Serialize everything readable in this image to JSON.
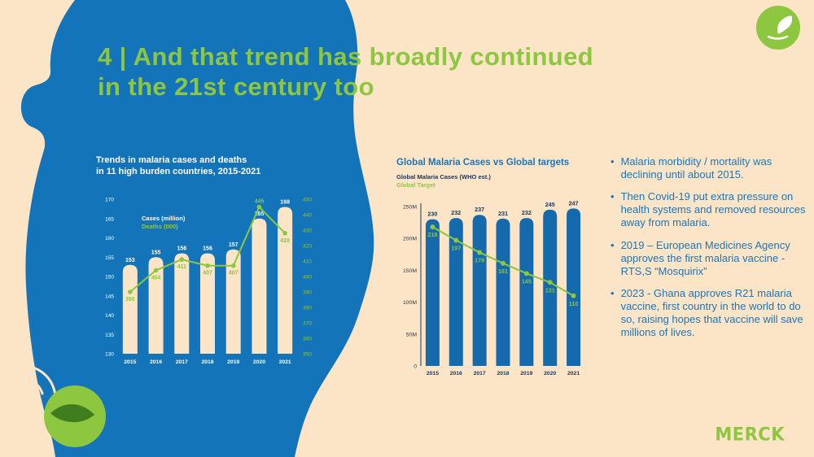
{
  "slide_title": {
    "line1": "4 | And that trend has broadly continued",
    "line2": "in the 21st century too"
  },
  "colors": {
    "background": "#fce4c6",
    "blob_blue": "#1474b9",
    "accent_green": "#8dc63f",
    "bar_cream": "#fce4c6",
    "bar_blue": "#1569ad",
    "navy_text": "#17365d",
    "bullet_blue": "#1b75bb",
    "white": "#ffffff"
  },
  "chart_data": [
    {
      "type": "bar+line",
      "title_line1": "Trends in malaria cases and deaths",
      "title_line2": "in 11 high burden countries, 2015-2021",
      "categories": [
        "2015",
        "2016",
        "2017",
        "2018",
        "2019",
        "2020",
        "2021"
      ],
      "series": [
        {
          "name": "Cases (million)",
          "type": "bar",
          "axis": "left",
          "values": [
            153,
            155,
            156,
            156,
            157,
            165,
            168
          ]
        },
        {
          "name": "Deaths (000)",
          "type": "line",
          "axis": "right",
          "values": [
            390,
            404,
            411,
            407,
            407,
            445,
            428
          ]
        }
      ],
      "left_axis": {
        "min": 130,
        "max": 170,
        "ticks": [
          "170",
          "165",
          "160",
          "155",
          "150",
          "145",
          "140",
          "135",
          "130"
        ]
      },
      "right_axis": {
        "min": 350,
        "max": 450,
        "ticks": [
          "450",
          "440",
          "430",
          "420",
          "410",
          "400",
          "390",
          "380",
          "370",
          "360",
          "350"
        ]
      }
    },
    {
      "type": "bar+line",
      "title": "Global Malaria Cases vs Global targets",
      "categories": [
        "2015",
        "2016",
        "2017",
        "2018",
        "2019",
        "2020",
        "2021"
      ],
      "series": [
        {
          "name": "Global Malaria Cases (WHO est.)",
          "type": "bar",
          "values": [
            230,
            232,
            237,
            231,
            232,
            245,
            247
          ]
        },
        {
          "name": "Global Target",
          "type": "line",
          "values": [
            218,
            197,
            178,
            161,
            145,
            131,
            110
          ]
        }
      ],
      "y_axis": {
        "min": 0,
        "max": 250,
        "ticks": [
          "250M",
          "200M",
          "150M",
          "100M",
          "50M",
          "0"
        ]
      }
    }
  ],
  "bullets": [
    "Malaria morbidity / mortality was declining until about 2015.",
    "Then Covid-19 put extra pressure on health systems and removed resources away from malaria.",
    "2019 – European Medicines Agency approves the first malaria vaccine - RTS,S “Mosquirix”",
    "2023 - Ghana approves R21 malaria vaccine, first country in the world to do so, raising hopes that vaccine will save millions of lives."
  ],
  "logo": "MERCK"
}
